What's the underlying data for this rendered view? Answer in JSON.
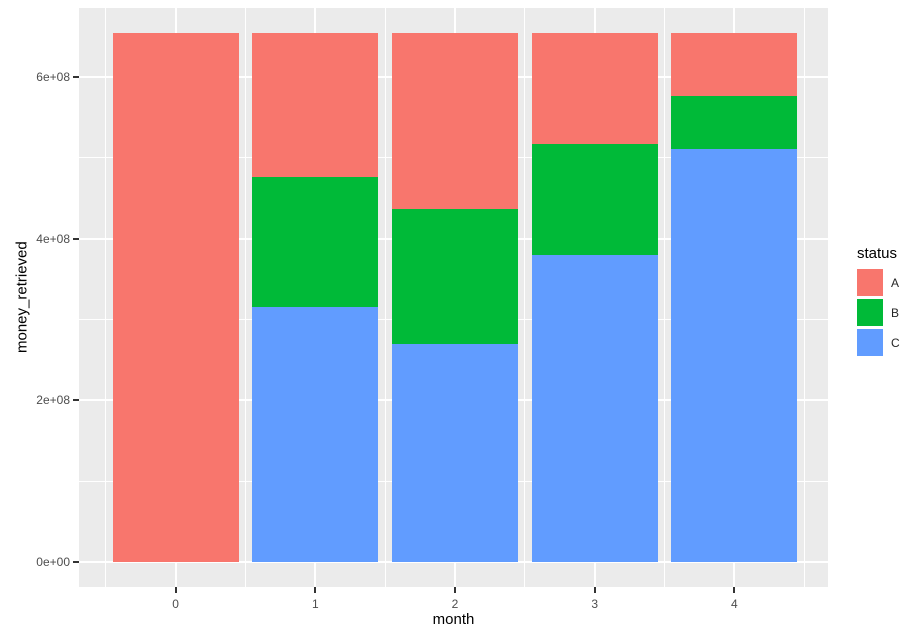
{
  "chart_data": {
    "type": "bar",
    "stacked": true,
    "orientation": "vertical",
    "title": "",
    "xlabel": "month",
    "ylabel": "money_retrieved",
    "categories": [
      "0",
      "1",
      "2",
      "3",
      "4"
    ],
    "series": [
      {
        "name": "A",
        "color": "#F8766D",
        "values": [
          654000000,
          178000000,
          217000000,
          137000000,
          77000000
        ]
      },
      {
        "name": "B",
        "color": "#00BA38",
        "values": [
          0,
          160000000,
          167000000,
          137000000,
          66000000
        ]
      },
      {
        "name": "C",
        "color": "#619CFF",
        "values": [
          0,
          316000000,
          270000000,
          380000000,
          511000000
        ]
      }
    ],
    "stack_order_bottom_to_top": [
      "C",
      "B",
      "A"
    ],
    "y_axis": {
      "ticks": [
        {
          "value": 0,
          "label": "0e+00"
        },
        {
          "value": 200000000,
          "label": "2e+08"
        },
        {
          "value": 400000000,
          "label": "4e+08"
        },
        {
          "value": 600000000,
          "label": "6e+08"
        }
      ],
      "minor_ticks": [
        100000000,
        300000000,
        500000000
      ],
      "range": [
        0,
        685000000
      ]
    },
    "x_axis": {
      "tick_labels": [
        "0",
        "1",
        "2",
        "3",
        "4"
      ]
    },
    "legend": {
      "title": "status",
      "position": "right",
      "entries": [
        {
          "label": "A",
          "color": "#F8766D"
        },
        {
          "label": "B",
          "color": "#00BA38"
        },
        {
          "label": "C",
          "color": "#619CFF"
        }
      ]
    },
    "style": {
      "panel_background": "#EBEBEB",
      "gridline_color": "#FFFFFF",
      "tick_label_color": "#4D4D4D",
      "axis_title_color": "#000000",
      "legend_text_color": "#262626",
      "tick_mark_color": "#333333"
    }
  }
}
